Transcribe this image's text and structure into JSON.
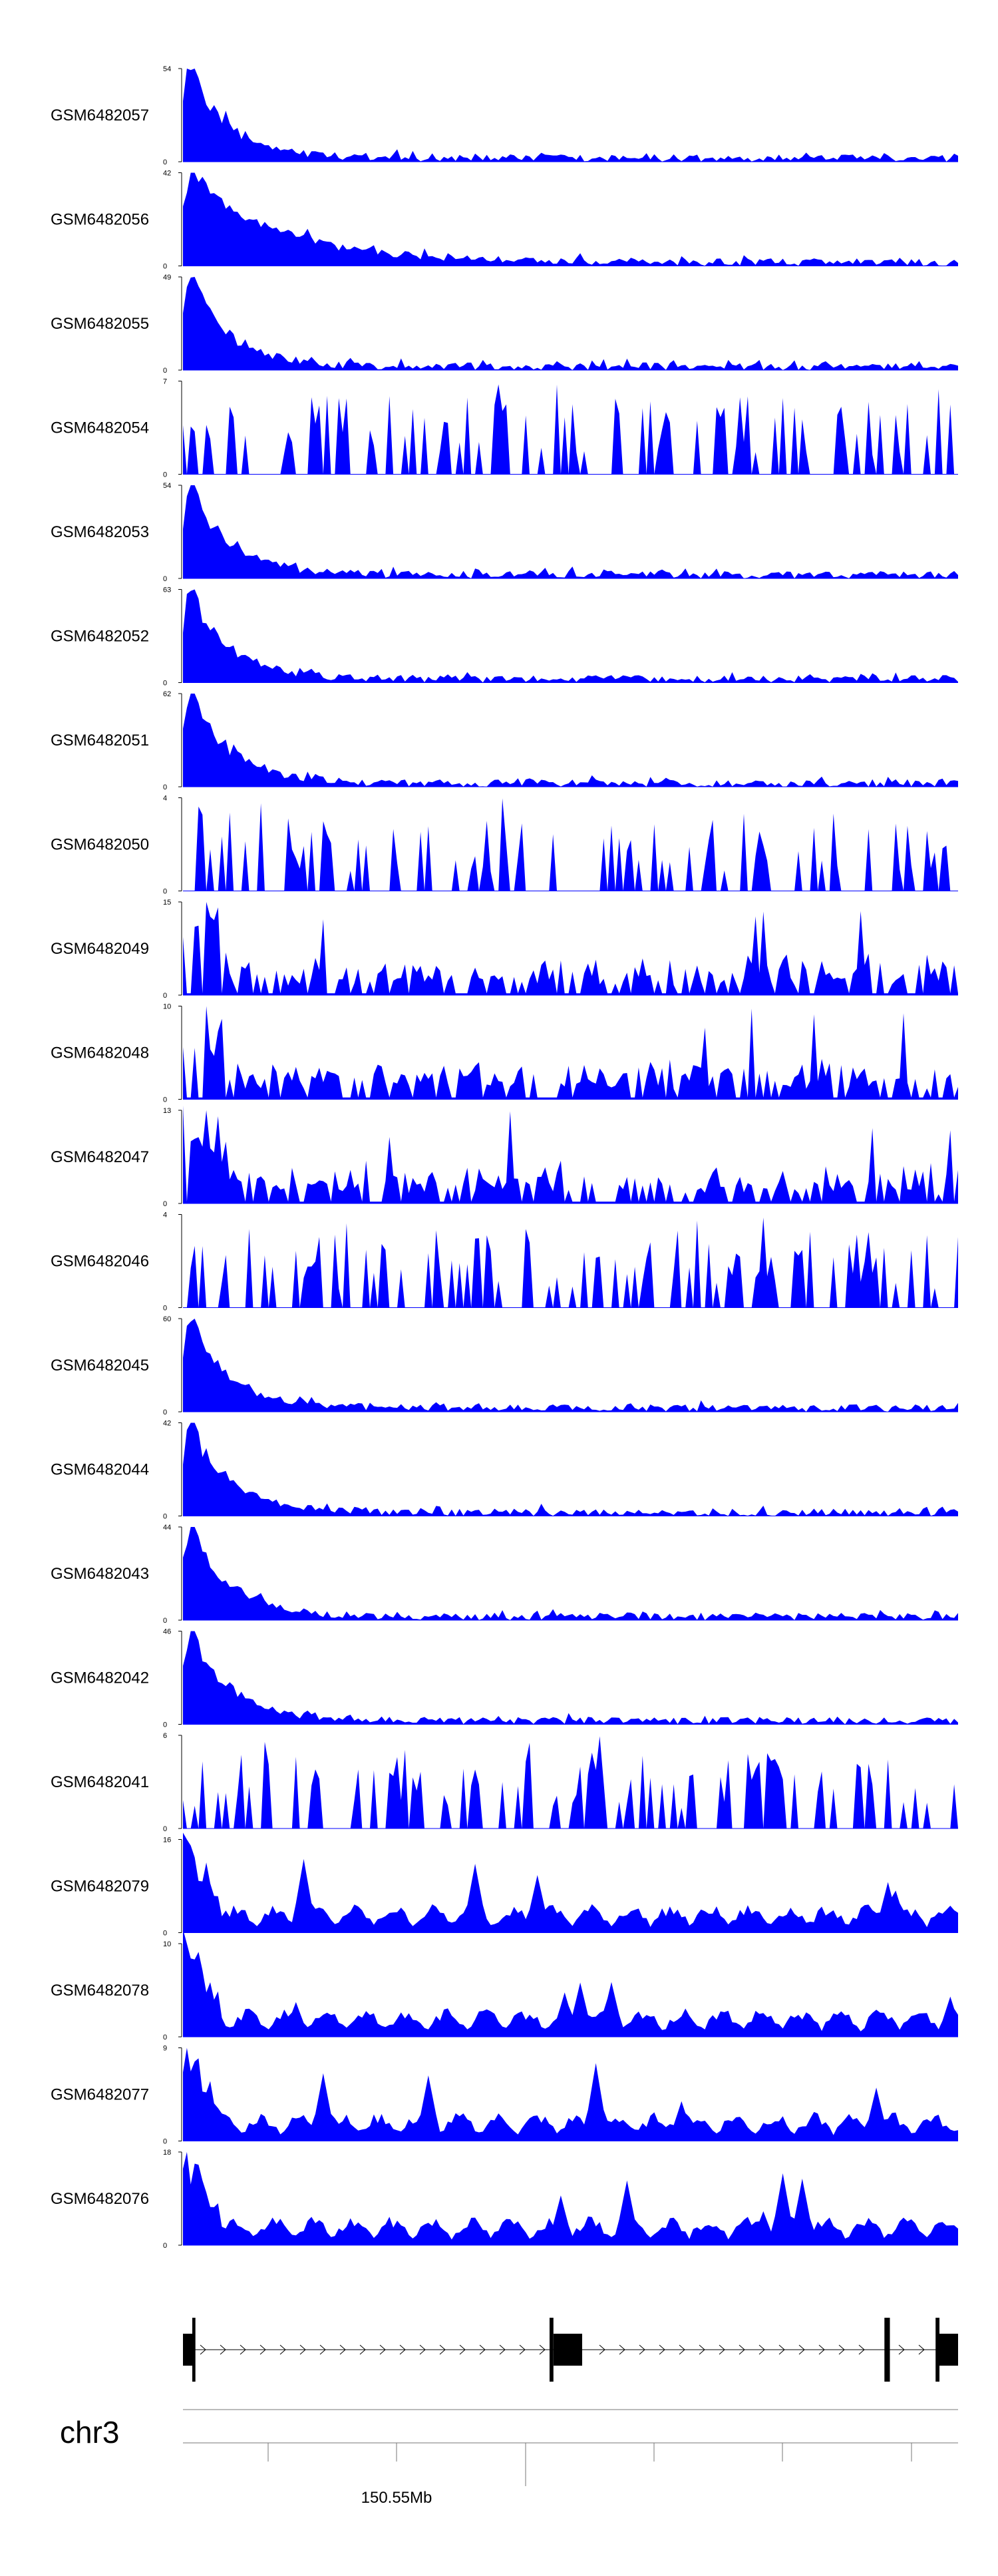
{
  "chart_data": {
    "type": "area",
    "fill_color": "#0000ff",
    "tracks": [
      {
        "name": "GSM6482057",
        "ymax": "54",
        "profile": "decay",
        "seed": 57
      },
      {
        "name": "GSM6482056",
        "ymax": "42",
        "profile": "decay-wide",
        "seed": 56
      },
      {
        "name": "GSM6482055",
        "ymax": "49",
        "profile": "decay",
        "seed": 55
      },
      {
        "name": "GSM6482054",
        "ymax": "7",
        "profile": "sparse",
        "seed": 54
      },
      {
        "name": "GSM6482053",
        "ymax": "54",
        "profile": "decay",
        "seed": 53
      },
      {
        "name": "GSM6482052",
        "ymax": "63",
        "profile": "decay",
        "seed": 52
      },
      {
        "name": "GSM6482051",
        "ymax": "62",
        "profile": "decay",
        "seed": 51
      },
      {
        "name": "GSM6482050",
        "ymax": "4",
        "profile": "sparse",
        "seed": 50
      },
      {
        "name": "GSM6482049",
        "ymax": "15",
        "profile": "medium",
        "seed": 49
      },
      {
        "name": "GSM6482048",
        "ymax": "10",
        "profile": "medium",
        "seed": 48
      },
      {
        "name": "GSM6482047",
        "ymax": "13",
        "profile": "medium",
        "seed": 47
      },
      {
        "name": "GSM6482046",
        "ymax": "4",
        "profile": "sparse",
        "seed": 46
      },
      {
        "name": "GSM6482045",
        "ymax": "60",
        "profile": "decay",
        "seed": 45
      },
      {
        "name": "GSM6482044",
        "ymax": "42",
        "profile": "decay",
        "seed": 44
      },
      {
        "name": "GSM6482043",
        "ymax": "44",
        "profile": "decay",
        "seed": 43
      },
      {
        "name": "GSM6482042",
        "ymax": "46",
        "profile": "decay",
        "seed": 42
      },
      {
        "name": "GSM6482041",
        "ymax": "6",
        "profile": "sparse",
        "seed": 41
      },
      {
        "name": "GSM6482079",
        "ymax": "16",
        "profile": "smooth",
        "seed": 79
      },
      {
        "name": "GSM6482078",
        "ymax": "10",
        "profile": "smooth",
        "seed": 78
      },
      {
        "name": "GSM6482077",
        "ymax": "9",
        "profile": "smooth",
        "seed": 77
      },
      {
        "name": "GSM6482076",
        "ymax": "18",
        "profile": "smooth",
        "seed": 76
      }
    ],
    "ymin_label": "0",
    "gene_model": {
      "exons": [
        {
          "start": 0.0,
          "end": 0.012,
          "thick": false
        },
        {
          "start": 0.012,
          "end": 0.016,
          "thick": true
        },
        {
          "start": 0.473,
          "end": 0.478,
          "thick": true
        },
        {
          "start": 0.478,
          "end": 0.515,
          "thick": false
        },
        {
          "start": 0.905,
          "end": 0.912,
          "thick": true
        },
        {
          "start": 0.971,
          "end": 0.976,
          "thick": true
        },
        {
          "start": 0.976,
          "end": 1.0,
          "thick": false
        }
      ],
      "strand": "+"
    },
    "chromosome": "chr3",
    "axis": {
      "tick_label": "150.55Mb",
      "labeled_tick_index": 2,
      "tick_count": 6
    }
  }
}
